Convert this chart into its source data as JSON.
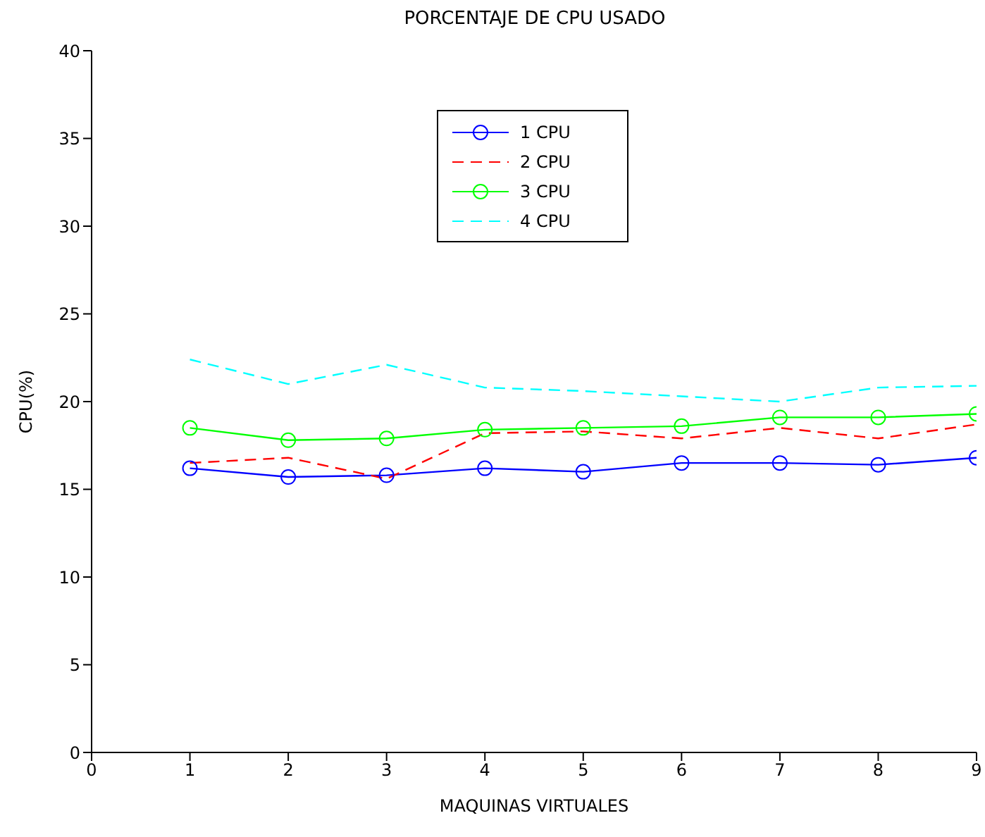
{
  "chart_data": {
    "type": "line",
    "title": "PORCENTAJE DE CPU USADO",
    "xlabel": "MAQUINAS VIRTUALES",
    "ylabel": "CPU(%)",
    "x": [
      1,
      2,
      3,
      4,
      5,
      6,
      7,
      8,
      9
    ],
    "xlim": [
      0,
      9
    ],
    "xticks": [
      0,
      1,
      2,
      3,
      4,
      5,
      6,
      7,
      8,
      9
    ],
    "ylim": [
      0,
      40
    ],
    "yticks": [
      0,
      5,
      10,
      15,
      20,
      25,
      30,
      35,
      40
    ],
    "grid": false,
    "legend": "top",
    "series": [
      {
        "name": "1 CPU",
        "color": "#0000ff",
        "marker": "circle",
        "line_style": "solid",
        "values": [
          16.2,
          15.7,
          15.8,
          16.2,
          16.0,
          16.5,
          16.5,
          16.4,
          16.8
        ]
      },
      {
        "name": "2 CPU",
        "color": "#ff0000",
        "marker": "none",
        "line_style": "dashed",
        "values": [
          16.5,
          16.8,
          15.6,
          18.2,
          18.3,
          17.9,
          18.5,
          17.9,
          18.7
        ]
      },
      {
        "name": "3 CPU",
        "color": "#00ff00",
        "marker": "circle",
        "line_style": "solid",
        "values": [
          18.5,
          17.8,
          17.9,
          18.4,
          18.5,
          18.6,
          19.1,
          19.1,
          19.3
        ]
      },
      {
        "name": "4 CPU",
        "color": "#00ffff",
        "marker": "none",
        "line_style": "dashed",
        "values": [
          22.4,
          21.0,
          22.1,
          20.8,
          20.6,
          20.3,
          20.0,
          20.8,
          20.9
        ]
      }
    ]
  }
}
